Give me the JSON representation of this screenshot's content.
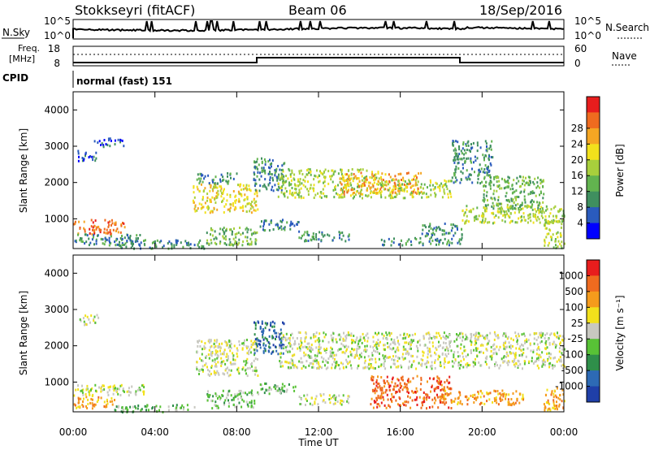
{
  "header": {
    "station": "Stokkseyri (fitACF)",
    "beam": "Beam 06",
    "date": "18/Sep/2016"
  },
  "top_panels": {
    "nsky_label": "N.Sky",
    "nsky_ticks": [
      "10^5",
      "10^0"
    ],
    "nsearch_label": "N.Search",
    "nsearch_ticks": [
      "10^5",
      "10^0"
    ],
    "freq_label": "Freq.",
    "freq_unit": "[MHz]",
    "freq_ticks": [
      "18",
      "8"
    ],
    "nave_label": "Nave",
    "nave_ticks": [
      "60",
      "0"
    ],
    "cpid_label": "CPID",
    "cpid_value": "normal (fast) 151"
  },
  "chart_data": [
    {
      "type": "heatmap",
      "name": "power",
      "ylabel": "Slant Range [km]",
      "ylim": [
        180,
        4500
      ],
      "yticks": [
        "1000",
        "2000",
        "3000",
        "4000"
      ],
      "xlim": [
        0,
        24
      ],
      "colorbar": {
        "label": "Power [dB]",
        "ticks": [
          "4",
          "8",
          "12",
          "16",
          "20",
          "24",
          "28"
        ],
        "colors": [
          "#0000ff",
          "#2a5bbd",
          "#3f8f5f",
          "#62b34f",
          "#a8cf3c",
          "#f2e11c",
          "#f5a623",
          "#ef6b1f",
          "#e81d1d"
        ]
      },
      "regions": [
        {
          "t0": 0.0,
          "t1": 2.5,
          "r0": 600,
          "r1": 1000,
          "level": 7
        },
        {
          "t0": 0.0,
          "t1": 3.5,
          "r0": 300,
          "r1": 600,
          "level": 2
        },
        {
          "t0": 0.2,
          "t1": 1.2,
          "r0": 2600,
          "r1": 2900,
          "level": 1
        },
        {
          "t0": 1.0,
          "t1": 2.5,
          "r0": 3000,
          "r1": 3250,
          "level": 1
        },
        {
          "t0": 2.0,
          "t1": 6.5,
          "r0": 200,
          "r1": 450,
          "level": 2
        },
        {
          "t0": 5.8,
          "t1": 9.0,
          "r0": 1200,
          "r1": 2000,
          "level": 5
        },
        {
          "t0": 6.0,
          "t1": 8.0,
          "r0": 2000,
          "r1": 2300,
          "level": 2
        },
        {
          "t0": 6.5,
          "t1": 9.0,
          "r0": 300,
          "r1": 800,
          "level": 3
        },
        {
          "t0": 8.8,
          "t1": 10.3,
          "r0": 1800,
          "r1": 2700,
          "level": 2
        },
        {
          "t0": 9.0,
          "t1": 11.0,
          "r0": 700,
          "r1": 1000,
          "level": 2
        },
        {
          "t0": 10.0,
          "t1": 15.0,
          "r0": 1600,
          "r1": 2400,
          "level": 4
        },
        {
          "t0": 13.0,
          "t1": 17.0,
          "r0": 1700,
          "r1": 2300,
          "level": 6
        },
        {
          "t0": 11.0,
          "t1": 13.5,
          "r0": 400,
          "r1": 700,
          "level": 2
        },
        {
          "t0": 15.0,
          "t1": 18.5,
          "r0": 1600,
          "r1": 2100,
          "level": 4
        },
        {
          "t0": 15.0,
          "t1": 19.0,
          "r0": 300,
          "r1": 500,
          "level": 2
        },
        {
          "t0": 17.0,
          "t1": 19.0,
          "r0": 500,
          "r1": 900,
          "level": 2
        },
        {
          "t0": 18.5,
          "t1": 20.5,
          "r0": 2000,
          "r1": 3200,
          "level": 2
        },
        {
          "t0": 19.0,
          "t1": 24.0,
          "r0": 900,
          "r1": 1400,
          "level": 4
        },
        {
          "t0": 20.0,
          "t1": 23.0,
          "r0": 1300,
          "r1": 2200,
          "level": 3
        },
        {
          "t0": 23.0,
          "t1": 24.0,
          "r0": 200,
          "r1": 1000,
          "level": 4
        }
      ]
    },
    {
      "type": "heatmap",
      "name": "velocity",
      "ylabel": "Slant Range [km]",
      "ylim": [
        180,
        4500
      ],
      "yticks": [
        "1000",
        "2000",
        "3000",
        "4000"
      ],
      "xlim": [
        0,
        24
      ],
      "xlabel": "Time UT",
      "xticks": [
        "00:00",
        "04:00",
        "08:00",
        "12:00",
        "16:00",
        "20:00",
        "00:00"
      ],
      "colorbar": {
        "label": "Velocity [m s⁻¹]",
        "ticks": [
          "1000",
          "500",
          "100",
          "25",
          "-25",
          "-100",
          "-500",
          "-1000"
        ],
        "colors": [
          "#1f3fa8",
          "#2d6ab5",
          "#2f8f4a",
          "#58c236",
          "#c8c8c0",
          "#f2e11c",
          "#f59b1c",
          "#ef6b1f",
          "#e81d1d"
        ]
      },
      "regions": [
        {
          "t0": 0.0,
          "t1": 3.5,
          "r0": 650,
          "r1": 950,
          "level": 4
        },
        {
          "t0": 0.0,
          "t1": 2.0,
          "r0": 300,
          "r1": 650,
          "level": 6
        },
        {
          "t0": 0.3,
          "t1": 1.2,
          "r0": 2600,
          "r1": 2900,
          "level": 4
        },
        {
          "t0": 2.0,
          "t1": 6.0,
          "r0": 200,
          "r1": 400,
          "level": 3
        },
        {
          "t0": 6.0,
          "t1": 9.0,
          "r0": 1200,
          "r1": 2200,
          "level": 4
        },
        {
          "t0": 6.5,
          "t1": 9.0,
          "r0": 300,
          "r1": 800,
          "level": 3
        },
        {
          "t0": 8.8,
          "t1": 10.3,
          "r0": 1800,
          "r1": 2700,
          "level": 1
        },
        {
          "t0": 9.0,
          "t1": 11.0,
          "r0": 700,
          "r1": 1000,
          "level": 3
        },
        {
          "t0": 10.0,
          "t1": 24.0,
          "r0": 1400,
          "r1": 2400,
          "level": 4
        },
        {
          "t0": 11.0,
          "t1": 13.5,
          "r0": 400,
          "r1": 700,
          "level": 4
        },
        {
          "t0": 14.5,
          "t1": 18.5,
          "r0": 300,
          "r1": 1200,
          "level": 7
        },
        {
          "t0": 18.0,
          "t1": 22.0,
          "r0": 400,
          "r1": 800,
          "level": 6
        },
        {
          "t0": 23.0,
          "t1": 24.0,
          "r0": 250,
          "r1": 900,
          "level": 6
        }
      ]
    }
  ]
}
